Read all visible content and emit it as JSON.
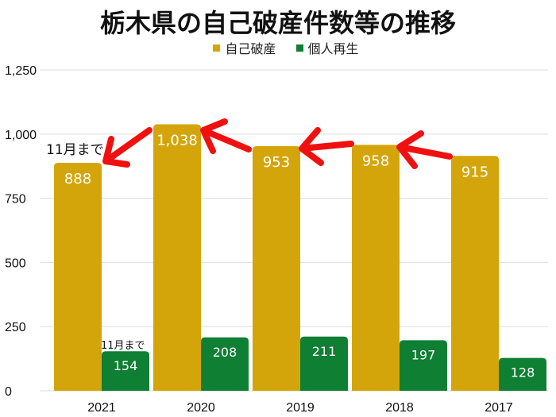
{
  "chart_data": {
    "type": "bar",
    "title": "栃木県の自己破産件数等の推移",
    "categories": [
      "2021",
      "2020",
      "2019",
      "2018",
      "2017"
    ],
    "series": [
      {
        "name": "自己破産",
        "color": "#D4A50B",
        "values": [
          888,
          1038,
          953,
          958,
          915
        ],
        "labels": [
          "888",
          "1,038",
          "953",
          "958",
          "915"
        ]
      },
      {
        "name": "個人再生",
        "color": "#0E7F33",
        "values": [
          154,
          208,
          211,
          197,
          128
        ],
        "labels": [
          "154",
          "208",
          "211",
          "197",
          "128"
        ]
      }
    ],
    "ylim": [
      0,
      1250
    ],
    "yticks": [
      0,
      250,
      500,
      750,
      1000,
      1250
    ],
    "ytick_labels": [
      "0",
      "250",
      "500",
      "750",
      "1,000",
      "1,250"
    ],
    "grid": true,
    "legend": "top-center",
    "annotations": [
      {
        "text": "11月まで",
        "target": "2021 自己破産"
      },
      {
        "text": "11月まで",
        "target": "2021 個人再生"
      }
    ],
    "arrow_color": "#F01010"
  }
}
